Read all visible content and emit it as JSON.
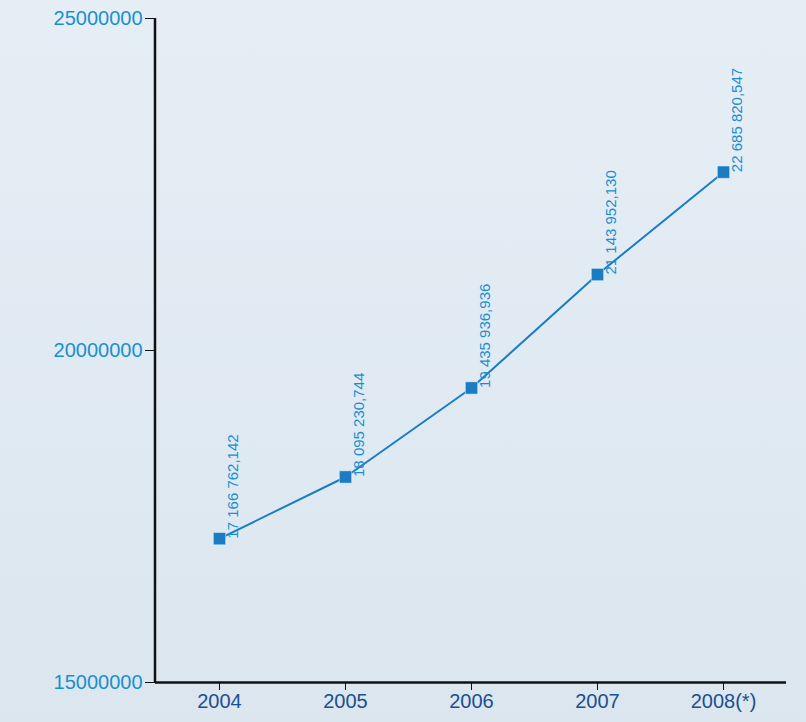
{
  "chart_data": {
    "type": "line",
    "categories": [
      "2004",
      "2005",
      "2006",
      "2007",
      "2008(*)"
    ],
    "values": [
      17166762.142,
      18095230.744,
      19435936.936,
      21143952.13,
      22685820.547
    ],
    "value_labels": [
      "17 166 762,142",
      "18 095 230,744",
      "19 435 936,936",
      "21 143 952,130",
      "22 685 820,547"
    ],
    "color": "#1a7dc4",
    "marker": "square",
    "ylim": [
      15000000,
      25000000
    ],
    "yticks": [
      15000000,
      20000000,
      25000000
    ],
    "grid": false,
    "data_labels": true
  }
}
